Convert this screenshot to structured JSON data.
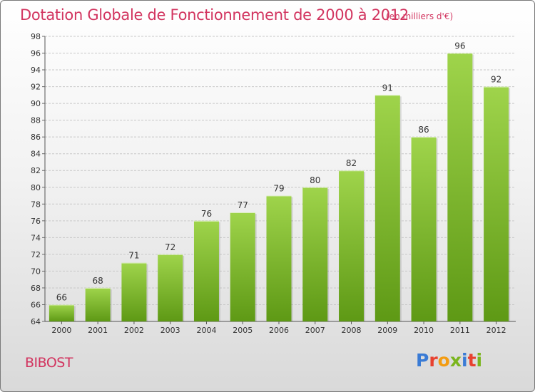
{
  "header": {
    "title": "Dotation Globale de Fonctionnement de 2000 à 2012",
    "unit": "(en milliers d'€)"
  },
  "footer": {
    "commune": "BIBOST",
    "logo_text": "Proxiti",
    "logo_colors": [
      "#3a7bd5",
      "#e8412f",
      "#f39c12",
      "#7ab51d",
      "#3a7bd5",
      "#e8412f",
      "#7ab51d"
    ]
  },
  "colors": {
    "bar_top": "#9fd44b",
    "bar_bottom": "#5e9915",
    "title": "#d2345f"
  },
  "chart_data": {
    "type": "bar",
    "categories": [
      "2000",
      "2001",
      "2002",
      "2003",
      "2004",
      "2005",
      "2006",
      "2007",
      "2008",
      "2009",
      "2010",
      "2011",
      "2012"
    ],
    "values": [
      66,
      68,
      71,
      72,
      76,
      77,
      79,
      80,
      82,
      91,
      86,
      96,
      92
    ],
    "title": "Dotation Globale de Fonctionnement de 2000 à 2012",
    "subtitle": "(en milliers d'€)",
    "xlabel": "",
    "ylabel": "",
    "ylim": [
      64,
      98
    ],
    "yticks": [
      64,
      66,
      68,
      70,
      72,
      74,
      76,
      78,
      80,
      82,
      84,
      86,
      88,
      90,
      92,
      94,
      96,
      98
    ],
    "grid": true
  }
}
